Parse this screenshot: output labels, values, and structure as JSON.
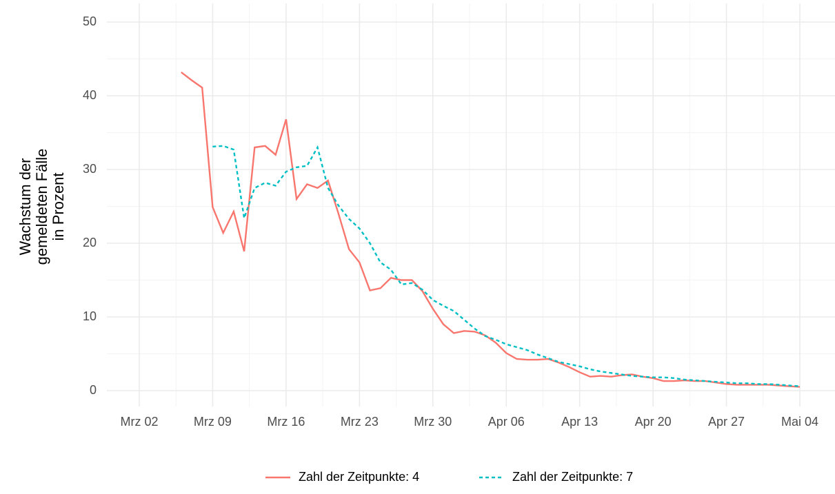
{
  "chart_data": {
    "type": "line",
    "ylabel": [
      "Wachstum der",
      "gemeldeten Fälle",
      "in Prozent"
    ],
    "categories": [
      "Mrz 02",
      "Mrz 03",
      "Mrz 04",
      "Mrz 05",
      "Mrz 06",
      "Mrz 07",
      "Mrz 08",
      "Mrz 09",
      "Mrz 10",
      "Mrz 11",
      "Mrz 12",
      "Mrz 13",
      "Mrz 14",
      "Mrz 15",
      "Mrz 16",
      "Mrz 17",
      "Mrz 18",
      "Mrz 19",
      "Mrz 20",
      "Mrz 21",
      "Mrz 22",
      "Mrz 23",
      "Mrz 24",
      "Mrz 25",
      "Mrz 26",
      "Mrz 27",
      "Mrz 28",
      "Mrz 29",
      "Mrz 30",
      "Mrz 31",
      "Apr 01",
      "Apr 02",
      "Apr 03",
      "Apr 04",
      "Apr 05",
      "Apr 06",
      "Apr 07",
      "Apr 08",
      "Apr 09",
      "Apr 10",
      "Apr 11",
      "Apr 12",
      "Apr 13",
      "Apr 14",
      "Apr 15",
      "Apr 16",
      "Apr 17",
      "Apr 18",
      "Apr 19",
      "Apr 20",
      "Apr 21",
      "Apr 22",
      "Apr 23",
      "Apr 24",
      "Apr 25",
      "Apr 26",
      "Apr 27",
      "Apr 28",
      "Apr 29",
      "Apr 30",
      "Mai 01",
      "Mai 02",
      "Mai 03",
      "Mai 04"
    ],
    "xticks": [
      "Mrz 02",
      "Mrz 09",
      "Mrz 16",
      "Mrz 23",
      "Mrz 30",
      "Apr 06",
      "Apr 13",
      "Apr 20",
      "Apr 27",
      "Mai 04"
    ],
    "series": [
      {
        "name": "Zahl der Zeitpunkte: 4",
        "color": "#f8766d",
        "linetype": "solid",
        "values": [
          null,
          null,
          null,
          null,
          43.2,
          42.1,
          41.1,
          24.9,
          21.4,
          24.3,
          18.9,
          33.0,
          33.2,
          32.0,
          36.8,
          26.0,
          28.0,
          27.5,
          28.5,
          24.0,
          19.2,
          17.4,
          13.6,
          13.9,
          15.3,
          15.0,
          15.0,
          13.5,
          11.1,
          9.0,
          7.8,
          8.1,
          8.0,
          7.5,
          6.5,
          5.1,
          4.3,
          4.2,
          4.2,
          4.3,
          3.8,
          3.2,
          2.5,
          1.9,
          2.0,
          1.9,
          2.1,
          2.2,
          1.9,
          1.7,
          1.3,
          1.3,
          1.4,
          1.3,
          1.3,
          1.1,
          0.9,
          0.8,
          0.8,
          0.8,
          0.8,
          0.7,
          0.6,
          0.5
        ]
      },
      {
        "name": "Zahl der Zeitpunkte: 7",
        "color": "#00bfc4",
        "linetype": "dashed",
        "values": [
          null,
          null,
          null,
          null,
          null,
          null,
          null,
          33.1,
          33.2,
          32.7,
          23.4,
          27.5,
          28.2,
          27.8,
          29.7,
          30.3,
          30.5,
          33.0,
          27.5,
          25.1,
          23.3,
          22.0,
          20.0,
          17.4,
          16.4,
          14.4,
          14.6,
          13.7,
          12.3,
          11.5,
          10.8,
          9.6,
          8.4,
          7.4,
          6.9,
          6.3,
          5.9,
          5.5,
          4.9,
          4.4,
          3.9,
          3.6,
          3.3,
          2.9,
          2.6,
          2.4,
          2.2,
          2.0,
          1.9,
          1.8,
          1.8,
          1.7,
          1.5,
          1.4,
          1.3,
          1.2,
          1.1,
          1.0,
          1.0,
          0.9,
          0.9,
          0.8,
          0.7,
          0.6
        ]
      }
    ],
    "ylim": [
      0,
      50
    ],
    "yticks": [
      0,
      10,
      20,
      30,
      40,
      50
    ],
    "grid": true,
    "legend": "bottom"
  }
}
